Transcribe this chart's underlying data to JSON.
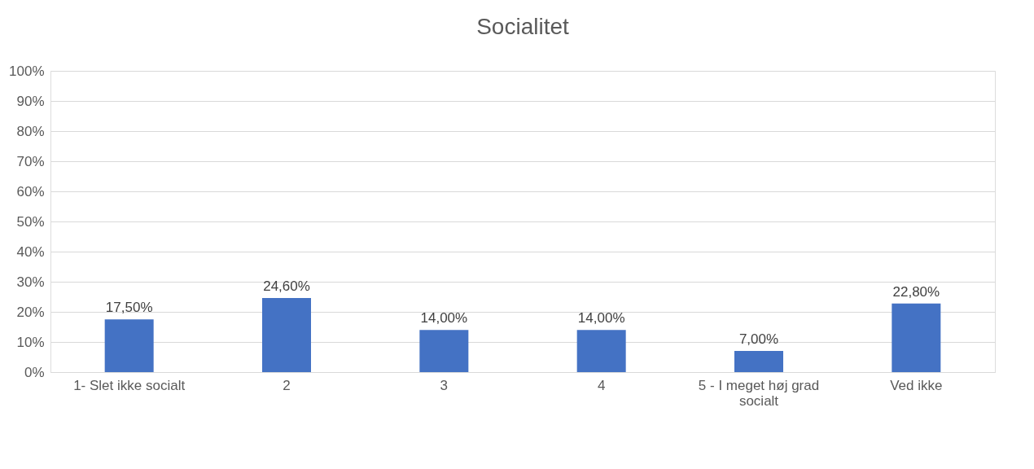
{
  "chart_data": {
    "type": "bar",
    "title": "Socialitet",
    "categories": [
      "1- Slet ikke socialt",
      "2",
      "3",
      "4",
      "5 - I meget høj grad socialt",
      "Ved ikke"
    ],
    "values": [
      17.5,
      24.6,
      14.0,
      14.0,
      7.0,
      22.8
    ],
    "value_labels": [
      "17,50%",
      "24,60%",
      "14,00%",
      "14,00%",
      "7,00%",
      "22,80%"
    ],
    "color": "#4472c4",
    "ylim": [
      0,
      100
    ],
    "yticks": [
      {
        "value": 0,
        "label": "0%"
      },
      {
        "value": 10,
        "label": "10%"
      },
      {
        "value": 20,
        "label": "20%"
      },
      {
        "value": 30,
        "label": "30%"
      },
      {
        "value": 40,
        "label": "40%"
      },
      {
        "value": 50,
        "label": "50%"
      },
      {
        "value": 60,
        "label": "60%"
      },
      {
        "value": 70,
        "label": "70%"
      },
      {
        "value": 80,
        "label": "80%"
      },
      {
        "value": 90,
        "label": "90%"
      },
      {
        "value": 100,
        "label": "100%"
      }
    ],
    "grid": "y"
  }
}
